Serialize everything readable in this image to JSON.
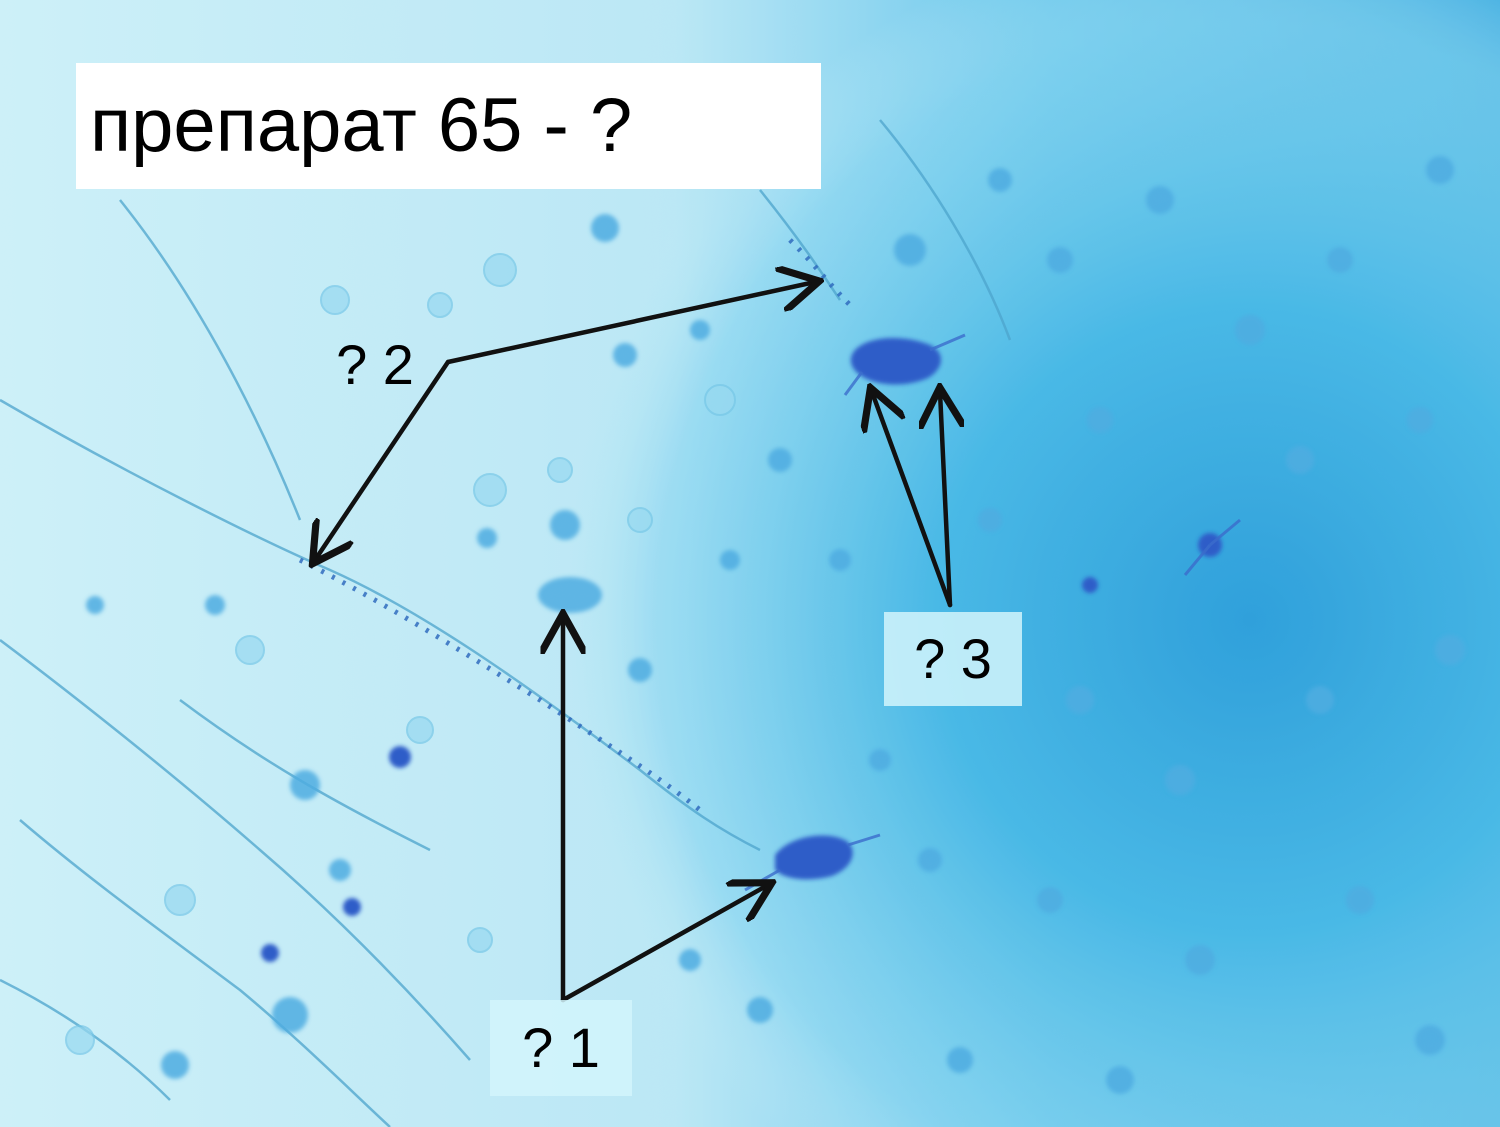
{
  "title": "препарат 65 - ?",
  "labels": {
    "label_1": "? 1",
    "label_2": "? 2",
    "label_3": "? 3"
  },
  "colors": {
    "background_light": "#c7eef7",
    "background_deep": "#2aa3dc",
    "stain_dark": "#1f56c8",
    "arrow": "#111111",
    "label_box": "#ffffff"
  }
}
